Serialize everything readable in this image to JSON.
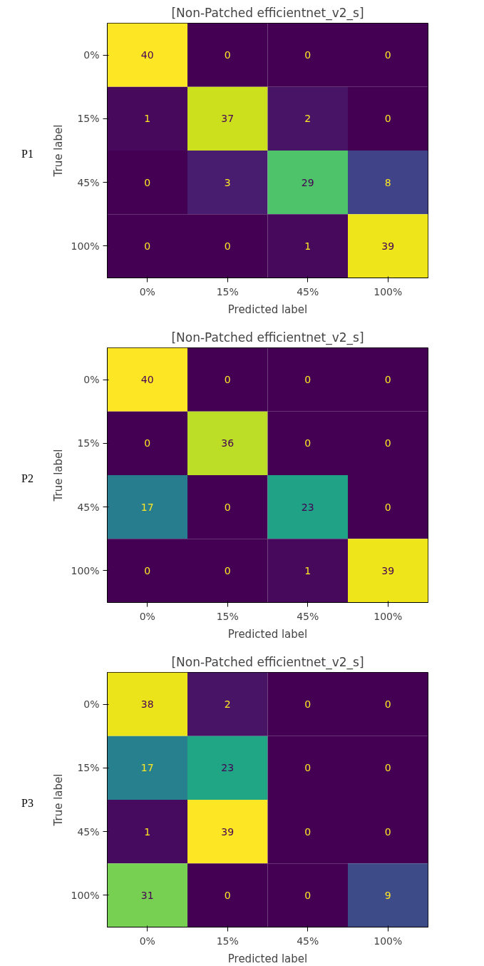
{
  "chart_data": [
    {
      "type": "heatmap",
      "title": "[Non-Patched efficientnet_v2_s]",
      "xlabel": "Predicted label",
      "ylabel": "True label",
      "annotations": [
        "P1"
      ],
      "data_labels": true,
      "categories": [
        "0%",
        "15%",
        "45%",
        "100%"
      ],
      "y_categories": [
        "0%",
        "15%",
        "45%",
        "100%"
      ],
      "cells": [
        [
          40,
          0,
          0,
          0
        ],
        [
          1,
          37,
          2,
          0
        ],
        [
          0,
          3,
          29,
          8
        ],
        [
          0,
          0,
          1,
          39
        ]
      ]
    },
    {
      "type": "heatmap",
      "title": "[Non-Patched efficientnet_v2_s]",
      "xlabel": "Predicted label",
      "ylabel": "True label",
      "annotations": [
        "P2"
      ],
      "data_labels": true,
      "categories": [
        "0%",
        "15%",
        "45%",
        "100%"
      ],
      "y_categories": [
        "0%",
        "15%",
        "45%",
        "100%"
      ],
      "cells": [
        [
          40,
          0,
          0,
          0
        ],
        [
          0,
          36,
          0,
          0
        ],
        [
          17,
          0,
          23,
          0
        ],
        [
          0,
          0,
          1,
          39
        ]
      ]
    },
    {
      "type": "heatmap",
      "title": "[Non-Patched efficientnet_v2_s]",
      "xlabel": "Predicted label",
      "ylabel": "True label",
      "annotations": [
        "P3"
      ],
      "data_labels": true,
      "categories": [
        "0%",
        "15%",
        "45%",
        "100%"
      ],
      "y_categories": [
        "0%",
        "15%",
        "45%",
        "100%"
      ],
      "cells": [
        [
          38,
          2,
          0,
          0
        ],
        [
          17,
          23,
          0,
          0
        ],
        [
          1,
          39,
          0,
          0
        ],
        [
          31,
          0,
          0,
          9
        ]
      ]
    }
  ]
}
